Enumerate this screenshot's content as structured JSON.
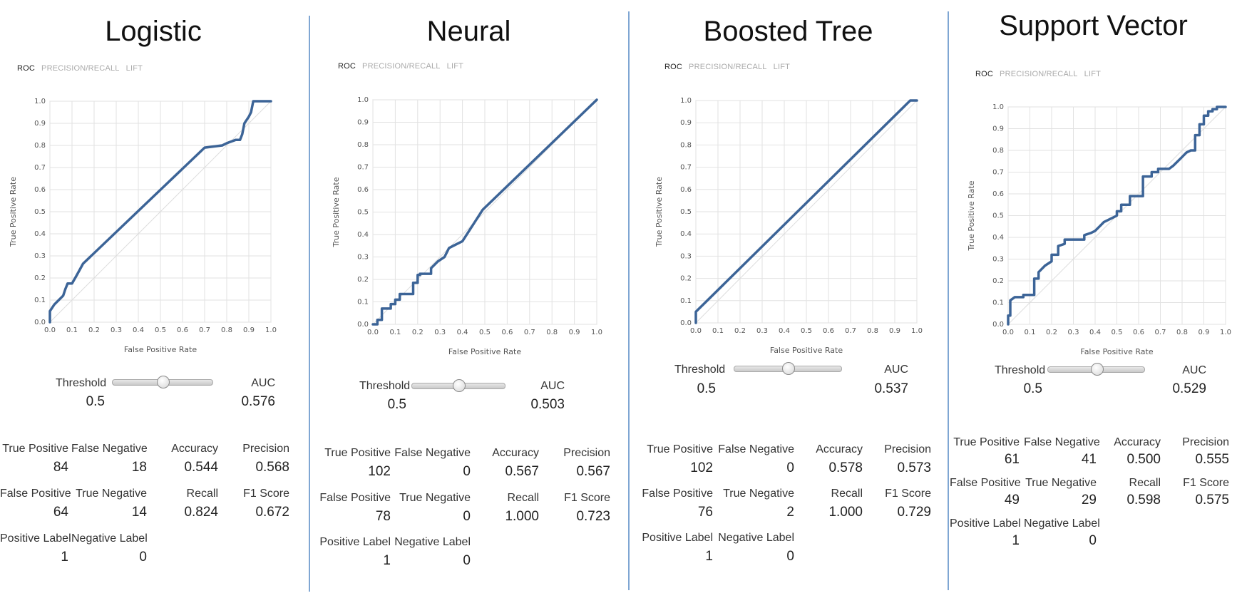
{
  "panels": [
    {
      "title": "Logistic",
      "tabs": [
        "ROC",
        "PRECISION/RECALL",
        "LIFT"
      ],
      "threshold_label": "Threshold",
      "threshold_value": "0.5",
      "auc_label": "AUC",
      "auc_value": "0.576",
      "metrics": {
        "tp_label": "True Positive",
        "tp": "84",
        "fn_label": "False Negative",
        "fn": "18",
        "acc_label": "Accuracy",
        "acc": "0.544",
        "prec_label": "Precision",
        "prec": "0.568",
        "fp_label": "False Positive",
        "fp": "64",
        "tn_label": "True Negative",
        "tn": "14",
        "recall_label": "Recall",
        "recall": "0.824",
        "f1_label": "F1 Score",
        "f1": "0.672",
        "pos_label_label": "Positive Label",
        "pos_label": "1",
        "neg_label_label": "Negative Label",
        "neg_label": "0"
      }
    },
    {
      "title": "Neural",
      "tabs": [
        "ROC",
        "PRECISION/RECALL",
        "LIFT"
      ],
      "threshold_label": "Threshold",
      "threshold_value": "0.5",
      "auc_label": "AUC",
      "auc_value": "0.503",
      "metrics": {
        "tp_label": "True Positive",
        "tp": "102",
        "fn_label": "False Negative",
        "fn": "0",
        "acc_label": "Accuracy",
        "acc": "0.567",
        "prec_label": "Precision",
        "prec": "0.567",
        "fp_label": "False Positive",
        "fp": "78",
        "tn_label": "True Negative",
        "tn": "0",
        "recall_label": "Recall",
        "recall": "1.000",
        "f1_label": "F1 Score",
        "f1": "0.723",
        "pos_label_label": "Positive Label",
        "pos_label": "1",
        "neg_label_label": "Negative Label",
        "neg_label": "0"
      }
    },
    {
      "title": "Boosted Tree",
      "tabs": [
        "ROC",
        "PRECISION/RECALL",
        "LIFT"
      ],
      "threshold_label": "Threshold",
      "threshold_value": "0.5",
      "auc_label": "AUC",
      "auc_value": "0.537",
      "metrics": {
        "tp_label": "True Positive",
        "tp": "102",
        "fn_label": "False Negative",
        "fn": "0",
        "acc_label": "Accuracy",
        "acc": "0.578",
        "prec_label": "Precision",
        "prec": "0.573",
        "fp_label": "False Positive",
        "fp": "76",
        "tn_label": "True Negative",
        "tn": "2",
        "recall_label": "Recall",
        "recall": "1.000",
        "f1_label": "F1 Score",
        "f1": "0.729",
        "pos_label_label": "Positive Label",
        "pos_label": "1",
        "neg_label_label": "Negative Label",
        "neg_label": "0"
      }
    },
    {
      "title": "Support Vector",
      "tabs": [
        "ROC",
        "PRECISION/RECALL",
        "LIFT"
      ],
      "threshold_label": "Threshold",
      "threshold_value": "0.5",
      "auc_label": "AUC",
      "auc_value": "0.529",
      "metrics": {
        "tp_label": "True Positive",
        "tp": "61",
        "fn_label": "False Negative",
        "fn": "41",
        "acc_label": "Accuracy",
        "acc": "0.500",
        "prec_label": "Precision",
        "prec": "0.555",
        "fp_label": "False Positive",
        "fp": "49",
        "tn_label": "True Negative",
        "tn": "29",
        "recall_label": "Recall",
        "recall": "0.598",
        "f1_label": "F1 Score",
        "f1": "0.575",
        "pos_label_label": "Positive Label",
        "pos_label": "1",
        "neg_label_label": "Negative Label",
        "neg_label": "0"
      }
    }
  ],
  "chart_data": [
    {
      "type": "line",
      "title": "",
      "xlabel": "False Positive Rate",
      "ylabel": "True Positive Rate",
      "xlim": [
        0,
        1
      ],
      "ylim": [
        0,
        1
      ],
      "xticks": [
        "0.0",
        "0.1",
        "0.2",
        "0.3",
        "0.4",
        "0.5",
        "0.6",
        "0.7",
        "0.8",
        "0.9",
        "1.0"
      ],
      "yticks": [
        "0.0",
        "0.1",
        "0.2",
        "0.3",
        "0.4",
        "0.5",
        "0.6",
        "0.7",
        "0.8",
        "0.9",
        "1.0"
      ],
      "grid": true,
      "series": [
        {
          "x": [
            0,
            0,
            0.02,
            0.04,
            0.06,
            0.07,
            0.08,
            0.1,
            0.12,
            0.15,
            0.7,
            0.78,
            0.8,
            0.84,
            0.86,
            0.87,
            0.88,
            0.9,
            0.91,
            0.92,
            0.93,
            1.0
          ],
          "y": [
            0,
            0.05,
            0.08,
            0.1,
            0.12,
            0.15,
            0.175,
            0.175,
            0.21,
            0.265,
            0.79,
            0.8,
            0.81,
            0.825,
            0.825,
            0.85,
            0.9,
            0.93,
            0.95,
            1.0,
            1.0,
            1.0
          ]
        },
        {
          "x": [
            0,
            1
          ],
          "y": [
            0,
            1
          ]
        }
      ],
      "line_colors": [
        "#3c6497",
        "#dddddd"
      ]
    },
    {
      "type": "line",
      "title": "",
      "xlabel": "False Positive Rate",
      "ylabel": "True Positive Rate",
      "xlim": [
        0,
        1
      ],
      "ylim": [
        0,
        1
      ],
      "xticks": [
        "0.0",
        "0.1",
        "0.2",
        "0.3",
        "0.4",
        "0.5",
        "0.6",
        "0.7",
        "0.8",
        "0.9",
        "1.0"
      ],
      "yticks": [
        "0.0",
        "0.1",
        "0.2",
        "0.3",
        "0.4",
        "0.5",
        "0.6",
        "0.7",
        "0.8",
        "0.9",
        "1.0"
      ],
      "grid": true,
      "series": [
        {
          "x": [
            0,
            0.02,
            0.02,
            0.04,
            0.04,
            0.08,
            0.08,
            0.1,
            0.1,
            0.12,
            0.12,
            0.18,
            0.18,
            0.2,
            0.2,
            0.21,
            0.21,
            0.26,
            0.26,
            0.29,
            0.32,
            0.34,
            0.4,
            0.49,
            1.0
          ],
          "y": [
            0,
            0,
            0.02,
            0.02,
            0.07,
            0.07,
            0.09,
            0.09,
            0.11,
            0.11,
            0.135,
            0.135,
            0.185,
            0.185,
            0.22,
            0.22,
            0.225,
            0.225,
            0.25,
            0.28,
            0.3,
            0.34,
            0.37,
            0.51,
            1.0
          ]
        },
        {
          "x": [
            0,
            1
          ],
          "y": [
            0,
            1
          ]
        }
      ],
      "line_colors": [
        "#3c6497",
        "#dddddd"
      ]
    },
    {
      "type": "line",
      "title": "",
      "xlabel": "False Positive Rate",
      "ylabel": "True Positive Rate",
      "xlim": [
        0,
        1
      ],
      "ylim": [
        0,
        1
      ],
      "xticks": [
        "0.0",
        "0.1",
        "0.2",
        "0.3",
        "0.4",
        "0.5",
        "0.6",
        "0.7",
        "0.8",
        "0.9",
        "1.0"
      ],
      "yticks": [
        "0.0",
        "0.1",
        "0.2",
        "0.3",
        "0.4",
        "0.5",
        "0.6",
        "0.7",
        "0.8",
        "0.9",
        "1.0"
      ],
      "grid": true,
      "series": [
        {
          "x": [
            0,
            0,
            0.97,
            1.0
          ],
          "y": [
            0,
            0.05,
            1.0,
            1.0
          ]
        },
        {
          "x": [
            0,
            1
          ],
          "y": [
            0,
            1
          ]
        }
      ],
      "line_colors": [
        "#3c6497",
        "#dddddd"
      ]
    },
    {
      "type": "line",
      "title": "",
      "xlabel": "False Positive Rate",
      "ylabel": "True Positive Rate",
      "xlim": [
        0,
        1
      ],
      "ylim": [
        0,
        1
      ],
      "xticks": [
        "0.0",
        "0.1",
        "0.2",
        "0.3",
        "0.4",
        "0.5",
        "0.6",
        "0.7",
        "0.8",
        "0.9",
        "1.0"
      ],
      "yticks": [
        "0.0",
        "0.1",
        "0.2",
        "0.3",
        "0.4",
        "0.5",
        "0.6",
        "0.7",
        "0.8",
        "0.9",
        "1.0"
      ],
      "grid": true,
      "series": [
        {
          "x": [
            0,
            0,
            0.01,
            0.01,
            0.03,
            0.05,
            0.07,
            0.07,
            0.12,
            0.12,
            0.14,
            0.14,
            0.17,
            0.2,
            0.2,
            0.23,
            0.23,
            0.26,
            0.26,
            0.28,
            0.28,
            0.35,
            0.35,
            0.38,
            0.4,
            0.42,
            0.44,
            0.46,
            0.48,
            0.5,
            0.5,
            0.52,
            0.52,
            0.56,
            0.56,
            0.62,
            0.62,
            0.66,
            0.66,
            0.69,
            0.69,
            0.74,
            0.76,
            0.78,
            0.8,
            0.82,
            0.84,
            0.86,
            0.86,
            0.88,
            0.88,
            0.9,
            0.9,
            0.92,
            0.92,
            0.94,
            0.94,
            0.96,
            0.96,
            1.0
          ],
          "y": [
            0,
            0.04,
            0.04,
            0.11,
            0.125,
            0.125,
            0.125,
            0.135,
            0.135,
            0.21,
            0.21,
            0.24,
            0.27,
            0.29,
            0.32,
            0.32,
            0.36,
            0.37,
            0.39,
            0.39,
            0.39,
            0.39,
            0.41,
            0.42,
            0.43,
            0.45,
            0.47,
            0.48,
            0.49,
            0.5,
            0.52,
            0.52,
            0.55,
            0.55,
            0.59,
            0.59,
            0.68,
            0.68,
            0.7,
            0.7,
            0.715,
            0.715,
            0.73,
            0.75,
            0.77,
            0.79,
            0.8,
            0.8,
            0.87,
            0.87,
            0.92,
            0.92,
            0.96,
            0.96,
            0.98,
            0.98,
            0.99,
            0.99,
            1.0,
            1.0
          ]
        },
        {
          "x": [
            0,
            1
          ],
          "y": [
            0,
            1
          ]
        }
      ],
      "line_colors": [
        "#3c6497",
        "#dddddd"
      ]
    }
  ]
}
